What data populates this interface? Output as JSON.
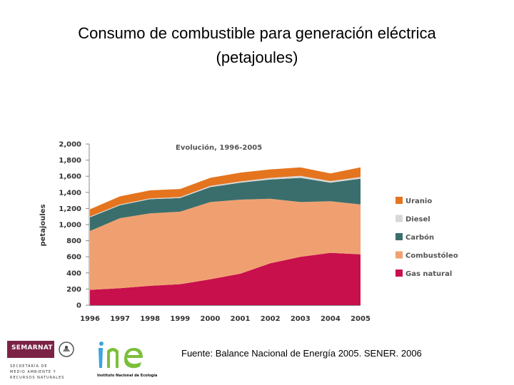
{
  "slide": {
    "title_line1": "Consumo de combustible para generación eléctrica",
    "title_line2": "(petajoules)",
    "source": "Fuente: Balance Nacional de Energía 2005. SENER. 2006"
  },
  "logos": {
    "semarnat": "SEMARNAT",
    "semarnat_lines": [
      "SECRETARÍA DE",
      "MEDIO AMBIENTE Y",
      "RECURSOS NATURALES"
    ],
    "ine": "Instituto Nacional de Ecología"
  },
  "chart_data": {
    "type": "area",
    "stacked": true,
    "title": "Evolución, 1996-2005",
    "ylabel": "petajoules",
    "xlabel": "",
    "ylim": [
      0,
      2000
    ],
    "yticks": [
      0,
      200,
      400,
      600,
      800,
      1000,
      1200,
      1400,
      1600,
      1800,
      2000
    ],
    "ytick_labels": [
      "0",
      "200",
      "400",
      "600",
      "800",
      "1,000",
      "1,200",
      "1,400",
      "1,600",
      "1,800",
      "2,000"
    ],
    "x": [
      "1996",
      "1997",
      "1998",
      "1999",
      "2000",
      "2001",
      "2002",
      "2003",
      "2004",
      "2005"
    ],
    "grid": false,
    "legend_position": "right",
    "series": [
      {
        "name": "Gas natural",
        "color": "#c8104d",
        "values": [
          190,
          210,
          240,
          260,
          320,
          390,
          520,
          600,
          650,
          630
        ]
      },
      {
        "name": "Combustóleo",
        "color": "#f0a070",
        "values": [
          730,
          870,
          900,
          900,
          960,
          920,
          800,
          680,
          640,
          620
        ]
      },
      {
        "name": "Carbón",
        "color": "#3a6e6c",
        "values": [
          170,
          160,
          175,
          170,
          185,
          210,
          240,
          300,
          230,
          320
        ]
      },
      {
        "name": "Diesel",
        "color": "#d8d8d8",
        "values": [
          10,
          10,
          10,
          12,
          15,
          15,
          20,
          25,
          20,
          20
        ]
      },
      {
        "name": "Uranio",
        "color": "#e5741e",
        "values": [
          90,
          100,
          100,
          100,
          100,
          110,
          105,
          105,
          95,
          120
        ]
      }
    ],
    "legend_order": [
      "Uranio",
      "Diesel",
      "Carbón",
      "Combustóleo",
      "Gas natural"
    ]
  }
}
